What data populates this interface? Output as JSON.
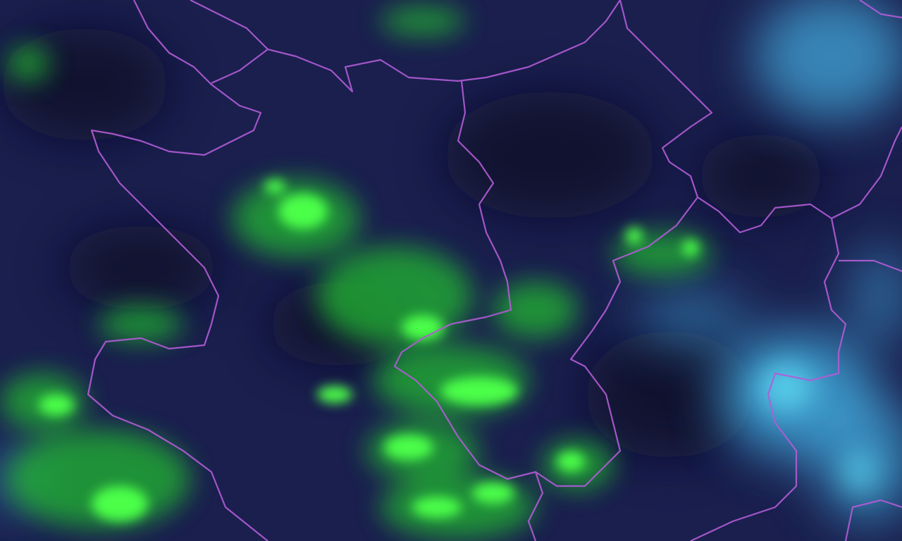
{
  "map": {
    "type": "satellite-imagery",
    "colors": {
      "background": "#1a1f4e",
      "dark_patch": "#0f1025",
      "vegetation_or_low_cloud": "#2fe03a",
      "high_cloud": "#4ab8e0",
      "boundary": "#b25cd6"
    }
  }
}
